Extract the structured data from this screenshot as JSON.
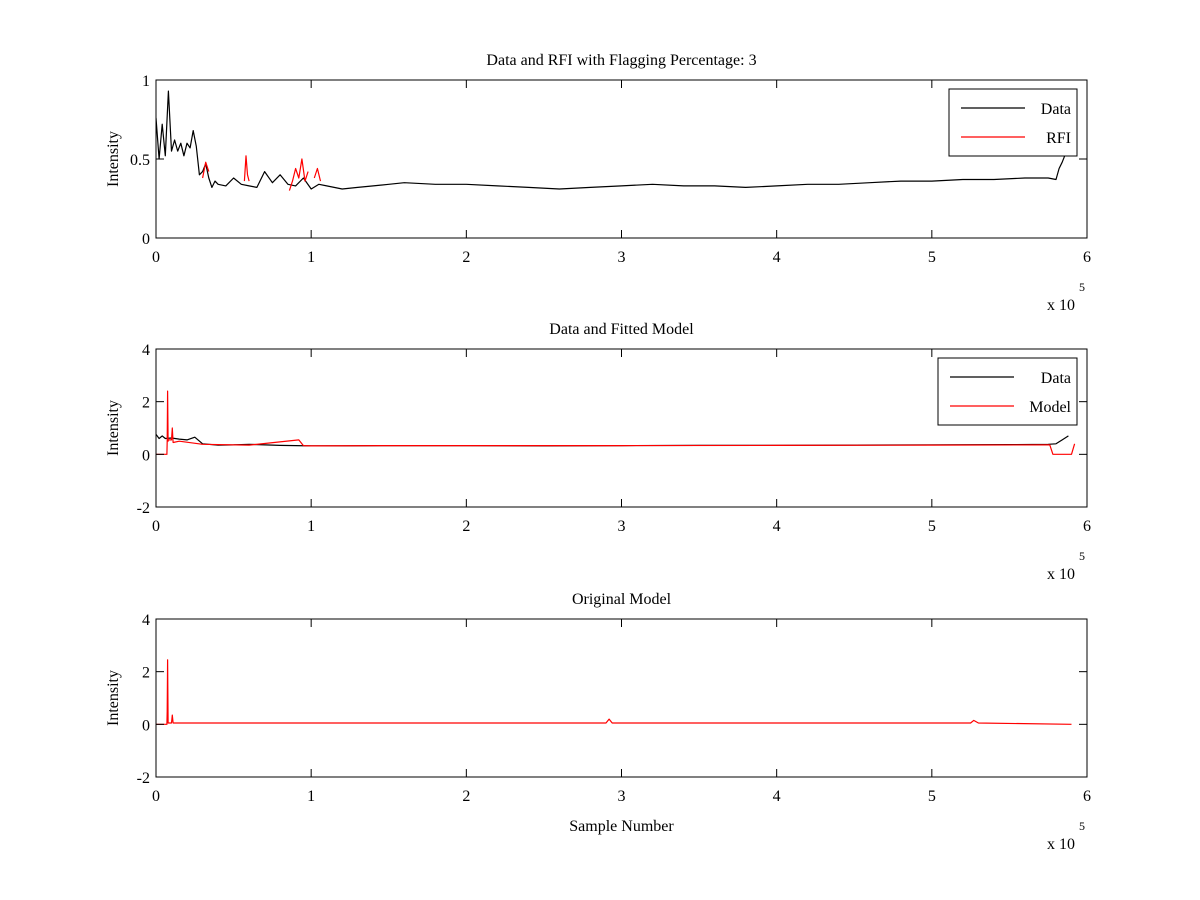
{
  "figure": {
    "background": "#ffffff",
    "axis_color": "#000000"
  },
  "chart_data": [
    {
      "type": "line",
      "title": "Data and RFI with Flagging Percentage: 3",
      "xlabel": "",
      "ylabel": "Intensity",
      "xlim": [
        0,
        6
      ],
      "ylim": [
        0,
        1
      ],
      "xticks": [
        "0",
        "1",
        "2",
        "3",
        "4",
        "5",
        "6"
      ],
      "yticks": [
        "0",
        "0.5",
        "1"
      ],
      "x_multiplier": "x 10",
      "x_multiplier_power": "5",
      "legend": {
        "position": "top-right",
        "entries": [
          {
            "label": "Data",
            "color": "#000000"
          },
          {
            "label": "RFI",
            "color": "#ff0000"
          }
        ]
      },
      "series": [
        {
          "name": "Data",
          "color": "#000000",
          "x": [
            0,
            0.02,
            0.04,
            0.06,
            0.08,
            0.1,
            0.12,
            0.14,
            0.16,
            0.18,
            0.2,
            0.22,
            0.24,
            0.26,
            0.28,
            0.3,
            0.32,
            0.34,
            0.36,
            0.38,
            0.4,
            0.45,
            0.5,
            0.55,
            0.6,
            0.65,
            0.7,
            0.75,
            0.8,
            0.85,
            0.9,
            0.95,
            1.0,
            1.05,
            1.1,
            1.2,
            1.3,
            1.4,
            1.5,
            1.6,
            1.8,
            2.0,
            2.2,
            2.4,
            2.6,
            2.8,
            3.0,
            3.2,
            3.4,
            3.6,
            3.8,
            4.0,
            4.2,
            4.4,
            4.6,
            4.8,
            5.0,
            5.2,
            5.4,
            5.6,
            5.75,
            5.8,
            5.82,
            5.84,
            5.86
          ],
          "y": [
            0.76,
            0.5,
            0.72,
            0.52,
            0.93,
            0.55,
            0.62,
            0.55,
            0.6,
            0.52,
            0.6,
            0.57,
            0.68,
            0.58,
            0.4,
            0.42,
            0.47,
            0.38,
            0.32,
            0.36,
            0.34,
            0.33,
            0.38,
            0.34,
            0.33,
            0.32,
            0.42,
            0.35,
            0.4,
            0.34,
            0.33,
            0.38,
            0.31,
            0.34,
            0.33,
            0.31,
            0.32,
            0.33,
            0.34,
            0.35,
            0.34,
            0.34,
            0.33,
            0.32,
            0.31,
            0.32,
            0.33,
            0.34,
            0.33,
            0.33,
            0.32,
            0.33,
            0.34,
            0.34,
            0.35,
            0.36,
            0.36,
            0.37,
            0.37,
            0.38,
            0.38,
            0.37,
            0.44,
            0.48,
            0.53
          ]
        },
        {
          "name": "RFI",
          "color": "#ff0000",
          "segments": [
            {
              "x": [
                0.3,
                0.32,
                0.34
              ],
              "y": [
                0.38,
                0.48,
                0.42
              ]
            },
            {
              "x": [
                0.57,
                0.58,
                0.59,
                0.6
              ],
              "y": [
                0.36,
                0.52,
                0.4,
                0.36
              ]
            },
            {
              "x": [
                0.86,
                0.88,
                0.9,
                0.92,
                0.94,
                0.96,
                0.98
              ],
              "y": [
                0.3,
                0.36,
                0.44,
                0.38,
                0.5,
                0.36,
                0.42
              ]
            },
            {
              "x": [
                1.02,
                1.04,
                1.06
              ],
              "y": [
                0.38,
                0.44,
                0.36
              ]
            }
          ]
        }
      ]
    },
    {
      "type": "line",
      "title": "Data and Fitted Model",
      "xlabel": "",
      "ylabel": "Intensity",
      "xlim": [
        0,
        6
      ],
      "ylim": [
        -2,
        4
      ],
      "xticks": [
        "0",
        "1",
        "2",
        "3",
        "4",
        "5",
        "6"
      ],
      "yticks": [
        "-2",
        "0",
        "2",
        "4"
      ],
      "x_multiplier": "x 10",
      "x_multiplier_power": "5",
      "legend": {
        "position": "top-right",
        "entries": [
          {
            "label": "Data",
            "color": "#000000"
          },
          {
            "label": "Model",
            "color": "#ff0000"
          }
        ]
      },
      "series": [
        {
          "name": "Data",
          "color": "#000000",
          "x": [
            0,
            0.02,
            0.04,
            0.06,
            0.1,
            0.15,
            0.2,
            0.25,
            0.3,
            0.4,
            0.5,
            0.6,
            0.8,
            1.0,
            1.2,
            1.5,
            2.0,
            2.5,
            3.0,
            3.5,
            4.0,
            4.5,
            5.0,
            5.5,
            5.75,
            5.8,
            5.84,
            5.88
          ],
          "y": [
            0.76,
            0.6,
            0.7,
            0.6,
            0.62,
            0.58,
            0.55,
            0.65,
            0.4,
            0.35,
            0.36,
            0.38,
            0.34,
            0.32,
            0.32,
            0.33,
            0.33,
            0.32,
            0.33,
            0.34,
            0.34,
            0.35,
            0.36,
            0.37,
            0.38,
            0.4,
            0.55,
            0.7
          ]
        },
        {
          "name": "Model",
          "color": "#ff0000",
          "x": [
            0,
            0.07,
            0.072,
            0.075,
            0.078,
            0.08,
            0.1,
            0.105,
            0.11,
            0.15,
            0.3,
            0.6,
            0.92,
            0.95,
            1.0,
            1.5,
            2.0,
            3.0,
            4.0,
            5.0,
            5.76,
            5.78,
            5.8,
            5.88,
            5.9,
            5.92
          ],
          "y": [
            0.0,
            0.0,
            0.5,
            2.4,
            0.5,
            0.55,
            0.55,
            1.0,
            0.45,
            0.5,
            0.38,
            0.35,
            0.55,
            0.33,
            0.32,
            0.33,
            0.33,
            0.33,
            0.34,
            0.35,
            0.36,
            0.0,
            0.0,
            0.0,
            0.0,
            0.4
          ]
        }
      ]
    },
    {
      "type": "line",
      "title": "Original Model",
      "xlabel": "Sample Number",
      "ylabel": "Intensity",
      "xlim": [
        0,
        6
      ],
      "ylim": [
        -2,
        4
      ],
      "xticks": [
        "0",
        "1",
        "2",
        "3",
        "4",
        "5",
        "6"
      ],
      "yticks": [
        "-2",
        "0",
        "2",
        "4"
      ],
      "x_multiplier": "x 10",
      "x_multiplier_power": "5",
      "series": [
        {
          "color": "#ff0000",
          "x": [
            0,
            0.07,
            0.072,
            0.075,
            0.078,
            0.1,
            0.105,
            0.11,
            0.5,
            1.0,
            1.5,
            2.0,
            2.5,
            2.9,
            2.92,
            2.94,
            3.5,
            4.0,
            4.5,
            5.0,
            5.25,
            5.27,
            5.3,
            5.9
          ],
          "y": [
            0.0,
            0.0,
            0.5,
            2.45,
            0.05,
            0.05,
            0.35,
            0.05,
            0.05,
            0.05,
            0.05,
            0.05,
            0.05,
            0.05,
            0.2,
            0.05,
            0.05,
            0.05,
            0.05,
            0.05,
            0.05,
            0.15,
            0.05,
            0.0
          ]
        }
      ]
    }
  ]
}
